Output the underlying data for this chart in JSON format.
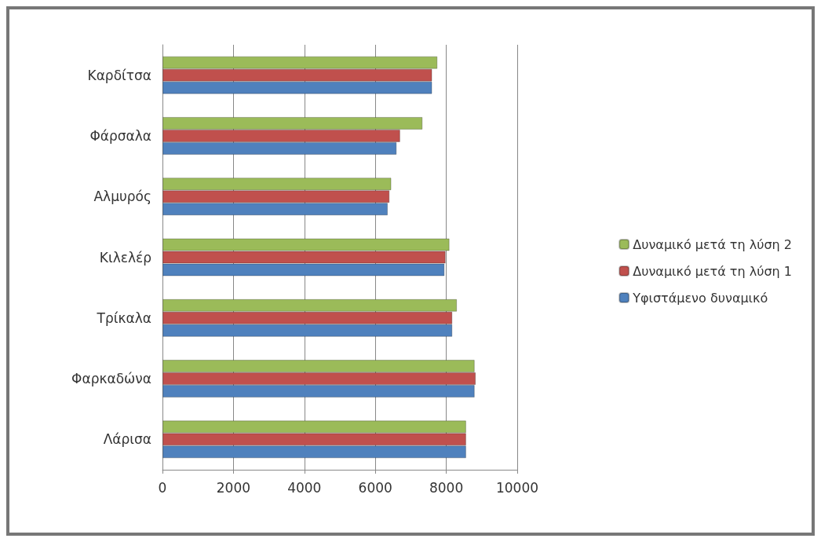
{
  "chart_data": {
    "type": "bar",
    "orientation": "horizontal",
    "categories": [
      "Καρδίτσα",
      "Φάρσαλα",
      "Αλμυρός",
      "Κιλελέρ",
      "Τρίκαλα",
      "Φαρκαδώνα",
      "Λάρισα"
    ],
    "series": [
      {
        "name": "Δυναμικό μετά τη λύση 2",
        "color": "#9bbb59",
        "values": [
          7750,
          7330,
          6450,
          8090,
          8300,
          8800,
          8560
        ]
      },
      {
        "name": "Δυναμικό μετά τη λύση 1",
        "color": "#c0504d",
        "values": [
          7600,
          6700,
          6400,
          7980,
          8170,
          8830,
          8560
        ]
      },
      {
        "name": "Υφιστάμενο δυναμικό",
        "color": "#4f81bd",
        "values": [
          7600,
          6600,
          6350,
          7950,
          8170,
          8800,
          8560
        ]
      }
    ],
    "xlim": [
      0,
      10000
    ],
    "xticks": [
      0,
      2000,
      4000,
      6000,
      8000,
      10000
    ],
    "grid": "x",
    "legend": "right"
  }
}
